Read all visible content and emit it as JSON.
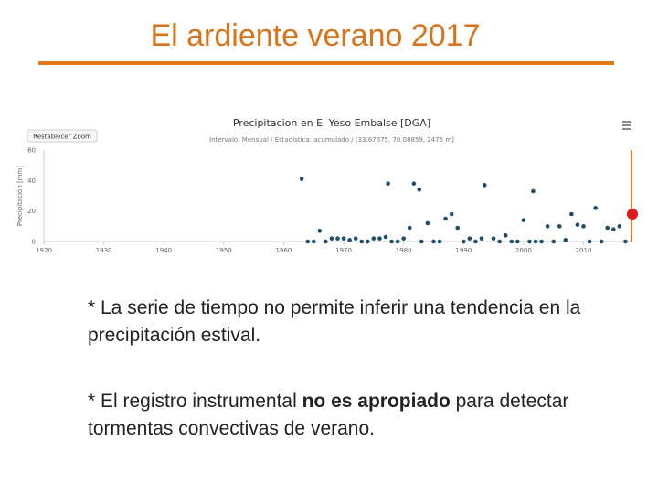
{
  "slide": {
    "title": "El ardiente verano 2017",
    "bullet1": "* La serie de tiempo no permite inferir una tendencia en la precipitación estival.",
    "bullet2_pre": "* El registro instrumental ",
    "bullet2_bold": "no es apropiado",
    "bullet2_post": " para detectar tormentas convectivas de verano."
  },
  "colors": {
    "accent": "#e07b17",
    "title": "#d9731a",
    "point": "#1f4e6b",
    "marker": "#e31a1c"
  },
  "chart_controls": {
    "reset_zoom_label": "Restablecer Zoom",
    "menu_icon": "hamburger-menu-icon"
  },
  "chart_data": {
    "type": "scatter",
    "title": "Precipitacion en El Yeso Embalse [DGA]",
    "subtitle": "Intervalo: Mensual / Estadística: acumulado / [33.67675, 70.08859, 2475 m]",
    "ylabel": "Precipitación [mm]",
    "xlabel": "",
    "xlim": [
      1920,
      2018
    ],
    "ylim": [
      0,
      60
    ],
    "x_ticks": [
      1920,
      1930,
      1940,
      1950,
      1960,
      1970,
      1980,
      1990,
      2000,
      2010
    ],
    "y_ticks": [
      0,
      20,
      40,
      60
    ],
    "grid": false,
    "series": [
      {
        "points": [
          [
            1963,
            41
          ],
          [
            1964,
            0
          ],
          [
            1965,
            0
          ],
          [
            1966,
            7
          ],
          [
            1967,
            0
          ],
          [
            1968,
            2
          ],
          [
            1969,
            2
          ],
          [
            1970,
            2
          ],
          [
            1971,
            1
          ],
          [
            1972,
            2
          ],
          [
            1973,
            0
          ],
          [
            1974,
            0
          ],
          [
            1975,
            2
          ],
          [
            1976,
            2
          ],
          [
            1977,
            3
          ],
          [
            1977.4,
            38
          ],
          [
            1978,
            0
          ],
          [
            1979,
            0
          ],
          [
            1980,
            2
          ],
          [
            1981,
            9
          ],
          [
            1981.7,
            38
          ],
          [
            1982.6,
            34
          ],
          [
            1983,
            0
          ],
          [
            1984,
            12
          ],
          [
            1985,
            0
          ],
          [
            1986,
            0
          ],
          [
            1987,
            15
          ],
          [
            1988,
            18
          ],
          [
            1989,
            9
          ],
          [
            1990,
            0
          ],
          [
            1991,
            2
          ],
          [
            1992,
            0
          ],
          [
            1993,
            2
          ],
          [
            1993.5,
            37
          ],
          [
            1995,
            2
          ],
          [
            1996,
            0
          ],
          [
            1997,
            4
          ],
          [
            1998,
            0
          ],
          [
            1999,
            0
          ],
          [
            2000,
            14
          ],
          [
            2001,
            0
          ],
          [
            2001.6,
            33
          ],
          [
            2002,
            0
          ],
          [
            2003,
            0
          ],
          [
            2004,
            10
          ],
          [
            2005,
            0
          ],
          [
            2006,
            10
          ],
          [
            2007,
            1
          ],
          [
            2008,
            18
          ],
          [
            2009,
            11
          ],
          [
            2010,
            10
          ],
          [
            2011,
            0
          ],
          [
            2012,
            22
          ],
          [
            2013,
            0
          ],
          [
            2014,
            9
          ],
          [
            2015,
            8
          ],
          [
            2016,
            10
          ],
          [
            2017,
            0
          ]
        ]
      }
    ],
    "annotations": [
      {
        "type": "vertical-line",
        "x": 2018
      },
      {
        "type": "marker",
        "x": 2018,
        "y": 18
      }
    ]
  }
}
